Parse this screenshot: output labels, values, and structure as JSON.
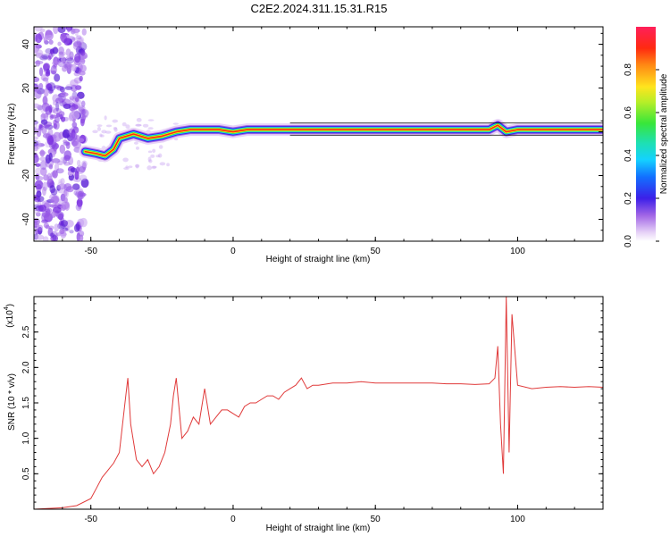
{
  "title": "C2E2.2024.311.15.31.R15",
  "chart_data": [
    {
      "type": "heatmap",
      "xlabel": "Height of straight line (km)",
      "ylabel": "Frequency (Hz)",
      "xlim": [
        -70,
        130
      ],
      "ylim": [
        -50,
        48
      ],
      "xticks": [
        -50,
        0,
        50,
        100
      ],
      "yticks": [
        -40,
        -20,
        0,
        20,
        40
      ],
      "colorbar": {
        "label": "Normalized spectral amplitude",
        "range": [
          0,
          1
        ],
        "ticks": [
          "0.0",
          "0.2",
          "0.4",
          "0.6",
          "0.8"
        ]
      },
      "ridge": [
        {
          "x": -52,
          "y": -9
        },
        {
          "x": -48,
          "y": -10
        },
        {
          "x": -45,
          "y": -11
        },
        {
          "x": -42,
          "y": -8
        },
        {
          "x": -40,
          "y": -3
        },
        {
          "x": -35,
          "y": -1
        },
        {
          "x": -30,
          "y": -3
        },
        {
          "x": -25,
          "y": -2
        },
        {
          "x": -20,
          "y": 0
        },
        {
          "x": -15,
          "y": 1
        },
        {
          "x": -10,
          "y": 1
        },
        {
          "x": -5,
          "y": 1
        },
        {
          "x": 0,
          "y": 0
        },
        {
          "x": 5,
          "y": 1
        },
        {
          "x": 10,
          "y": 1
        },
        {
          "x": 20,
          "y": 1
        },
        {
          "x": 30,
          "y": 1
        },
        {
          "x": 60,
          "y": 1
        },
        {
          "x": 90,
          "y": 1
        },
        {
          "x": 93,
          "y": 3
        },
        {
          "x": 96,
          "y": 0
        },
        {
          "x": 100,
          "y": 1
        },
        {
          "x": 130,
          "y": 1
        }
      ]
    },
    {
      "type": "line",
      "xlabel": "Height of straight line (km)",
      "ylabel": "SNR (10 * v/v)",
      "scale_label": "(x10",
      "scale_exponent": "4",
      "xlim": [
        -70,
        130
      ],
      "ylim": [
        0,
        3.0
      ],
      "xticks": [
        -50,
        0,
        50,
        100
      ],
      "yticks": [
        "0.5",
        "1.0",
        "1.5",
        "2.0",
        "2.5"
      ],
      "line_color": "#e03a3a",
      "series": [
        {
          "x": [
            -70,
            -60,
            -55,
            -50,
            -48,
            -46,
            -44,
            -42,
            -40,
            -38,
            -37,
            -36,
            -34,
            -32,
            -30,
            -28,
            -26,
            -24,
            -22,
            -21,
            -20,
            -18,
            -16,
            -14,
            -12,
            -10,
            -8,
            -6,
            -4,
            -2,
            0,
            2,
            4,
            6,
            8,
            10,
            12,
            14,
            16,
            18,
            20,
            22,
            24,
            26,
            28,
            30,
            35,
            40,
            45,
            50,
            55,
            60,
            65,
            70,
            75,
            80,
            85,
            90,
            92,
            93,
            94,
            95,
            96,
            97,
            98,
            100,
            105,
            110,
            115,
            120,
            125,
            130
          ],
          "y": [
            0.0,
            0.02,
            0.05,
            0.15,
            0.3,
            0.45,
            0.55,
            0.65,
            0.8,
            1.5,
            1.85,
            1.2,
            0.7,
            0.6,
            0.7,
            0.5,
            0.6,
            0.8,
            1.2,
            1.6,
            1.85,
            1.0,
            1.1,
            1.3,
            1.2,
            1.7,
            1.2,
            1.3,
            1.4,
            1.4,
            1.35,
            1.3,
            1.45,
            1.5,
            1.5,
            1.55,
            1.6,
            1.6,
            1.55,
            1.65,
            1.7,
            1.75,
            1.85,
            1.7,
            1.75,
            1.75,
            1.78,
            1.78,
            1.8,
            1.78,
            1.78,
            1.78,
            1.78,
            1.78,
            1.77,
            1.77,
            1.76,
            1.77,
            1.85,
            2.3,
            1.2,
            0.5,
            3.0,
            0.8,
            2.75,
            1.75,
            1.7,
            1.72,
            1.73,
            1.72,
            1.73,
            1.72
          ]
        }
      ]
    }
  ]
}
